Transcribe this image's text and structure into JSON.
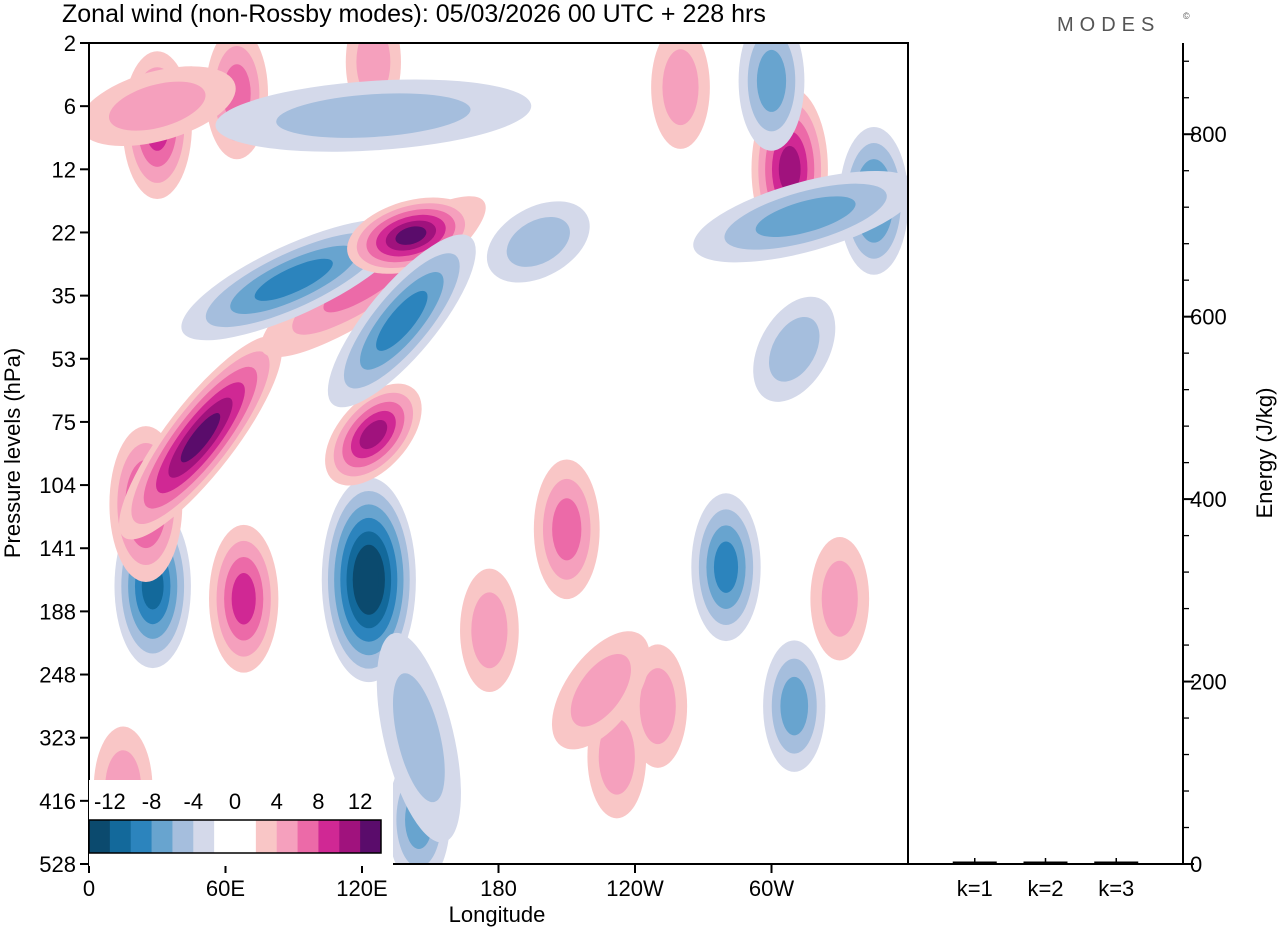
{
  "chart_data": [
    {
      "type": "heatmap",
      "title": "Zonal wind (non-Rossby modes):  05/03/2026  00 UTC  + 228 hrs",
      "xlabel": "Longitude",
      "ylabel": "Pressure levels (hPa)",
      "x_ticks": [
        "0",
        "60E",
        "120E",
        "180",
        "120W",
        "60W"
      ],
      "x_tick_degrees": [
        0,
        60,
        120,
        180,
        240,
        300
      ],
      "xlim_degrees": [
        0,
        360
      ],
      "y_ticks": [
        "2",
        "6",
        "12",
        "22",
        "35",
        "53",
        "75",
        "104",
        "141",
        "188",
        "248",
        "323",
        "416",
        "528"
      ],
      "colorbar": {
        "labels": [
          "-12",
          "-8",
          "-4",
          "0",
          "4",
          "8",
          "12"
        ],
        "colors": [
          "#0b4a6e",
          "#13699b",
          "#2c84bd",
          "#68a4cf",
          "#a5bedd",
          "#d4d9ea",
          "#ffffff",
          "#ffffff",
          "#f9c6c6",
          "#f5a0bd",
          "#ec6aa8",
          "#d02894",
          "#a0127d",
          "#5a0c6b"
        ]
      },
      "features": [
        {
          "sign": "neg",
          "lon": 28,
          "lev": 8.6,
          "peak": 9
        },
        {
          "sign": "neg",
          "lon": 123,
          "lev": 8.5,
          "peak": 14
        },
        {
          "sign": "neg",
          "lon": 280,
          "lev": 8.3,
          "peak": 7
        },
        {
          "sign": "neg",
          "lon": 145,
          "lev": 12.3,
          "peak": 5
        },
        {
          "sign": "neg",
          "lon": 310,
          "lev": 10.5,
          "peak": 5
        },
        {
          "sign": "pos",
          "lon": 68,
          "lev": 8.8,
          "peak": 7
        },
        {
          "sign": "pos",
          "lon": 210,
          "lev": 7.7,
          "peak": 6
        },
        {
          "sign": "pos",
          "lon": 232,
          "lev": 11.3,
          "peak": 4
        },
        {
          "sign": "pos",
          "lon": 250,
          "lev": 10.5,
          "peak": 4
        },
        {
          "sign": "pos",
          "lon": 176,
          "lev": 9.3,
          "peak": 4
        },
        {
          "sign": "pos",
          "lon": 330,
          "lev": 8.8,
          "peak": 4
        },
        {
          "sign": "pos",
          "lon": 15,
          "lev": 11.8,
          "peak": 4
        },
        {
          "sign": "pos",
          "lon": 25,
          "lev": 7.3,
          "peak": 8
        },
        {
          "sign": "pos",
          "lon": 308,
          "lev": 2.0,
          "peak": 9
        },
        {
          "sign": "pos",
          "lon": 260,
          "lev": 0.7,
          "peak": 4
        },
        {
          "sign": "neg",
          "lon": 300,
          "lev": 0.6,
          "peak": 6
        },
        {
          "sign": "neg",
          "lon": 345,
          "lev": 2.5,
          "peak": 7
        },
        {
          "sign": "pos",
          "lon": 30,
          "lev": 1.3,
          "peak": 7
        },
        {
          "sign": "pos",
          "lon": 65,
          "lev": 0.8,
          "peak": 5
        },
        {
          "sign": "pos",
          "lon": 125,
          "lev": 0.3,
          "peak": 3
        }
      ],
      "bands": [
        {
          "sign": "pos",
          "from": [
            18,
            7.7
          ],
          "to": [
            80,
            4.8
          ],
          "peak": 12
        },
        {
          "sign": "pos",
          "from": [
            80,
            4.8
          ],
          "to": [
            170,
            2.6
          ],
          "peak": 6
        },
        {
          "sign": "neg",
          "from": [
            45,
            4.5
          ],
          "to": [
            135,
            3.0
          ],
          "peak": 7
        },
        {
          "sign": "pos",
          "from": [
            118,
            3.3
          ],
          "to": [
            165,
            2.8
          ],
          "peak": 12
        },
        {
          "sign": "pos",
          "from": [
            110,
            6.8
          ],
          "to": [
            140,
            5.6
          ],
          "peak": 9
        },
        {
          "sign": "neg",
          "from": [
            110,
            5.6
          ],
          "to": [
            165,
            3.2
          ],
          "peak": 7
        },
        {
          "sign": "neg",
          "from": [
            180,
            3.5
          ],
          "to": [
            215,
            2.8
          ],
          "peak": 4
        },
        {
          "sign": "pos",
          "from": [
            0,
            1.3
          ],
          "to": [
            60,
            0.7
          ],
          "peak": 4
        },
        {
          "sign": "neg",
          "from": [
            60,
            1.3
          ],
          "to": [
            190,
            1.0
          ],
          "peak": 4
        },
        {
          "sign": "neg",
          "from": [
            270,
            3.2
          ],
          "to": [
            360,
            2.3
          ],
          "peak": 5
        },
        {
          "sign": "pos",
          "from": [
            210,
            11.0
          ],
          "to": [
            240,
            9.5
          ],
          "peak": 4
        },
        {
          "sign": "neg",
          "from": [
            135,
            9.5
          ],
          "to": [
            155,
            12.5
          ],
          "peak": 3
        },
        {
          "sign": "neg",
          "from": [
            300,
            5.5
          ],
          "to": [
            320,
            4.2
          ],
          "peak": 3
        }
      ]
    },
    {
      "type": "bar",
      "ylabel": "Energy (J/kg)",
      "categories": [
        "k=1",
        "k=2",
        "k=3"
      ],
      "values": [
        1,
        1,
        1
      ],
      "ylim": [
        0,
        900
      ],
      "y_ticks": [
        "0",
        "200",
        "400",
        "600",
        "800"
      ]
    }
  ],
  "logo": {
    "text": "MODES",
    "mark": "©"
  }
}
